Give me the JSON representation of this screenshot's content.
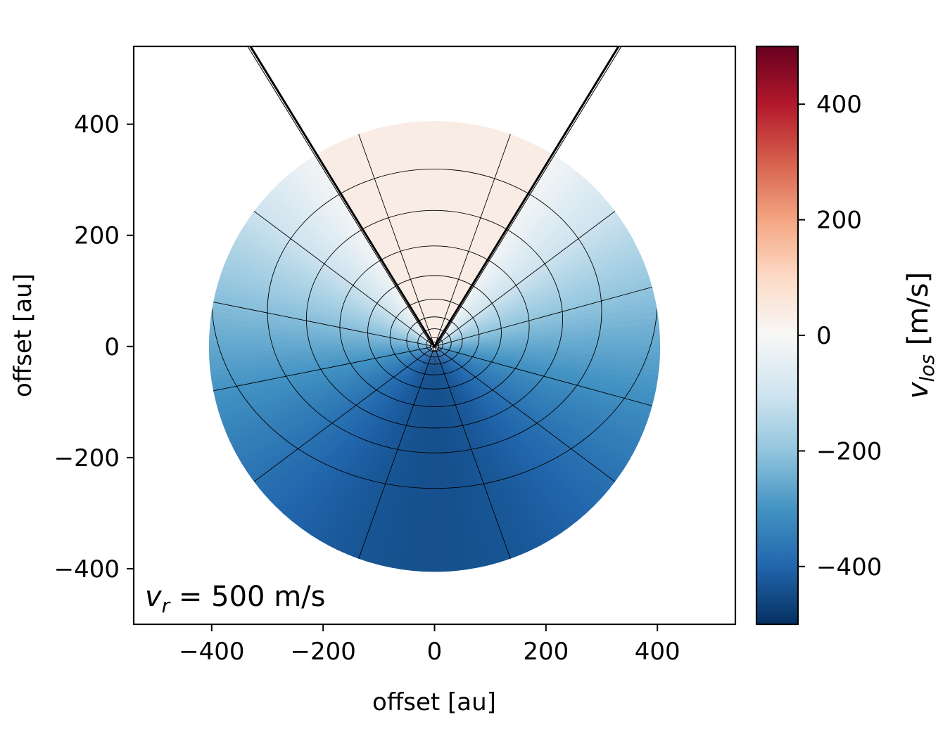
{
  "chart_data": {
    "type": "heatmap",
    "title": "",
    "xlabel": "offset [au]",
    "ylabel": "offset [au]",
    "xlim": [
      -540,
      540
    ],
    "ylim": [
      -500,
      540
    ],
    "x_ticks": [
      -400,
      -200,
      0,
      200,
      400
    ],
    "x_tick_labels": [
      "−400",
      "−200",
      "0",
      "200",
      "400"
    ],
    "y_ticks": [
      -400,
      -200,
      0,
      200,
      400
    ],
    "y_tick_labels": [
      "−400",
      "−200",
      "0",
      "200",
      "400"
    ],
    "annotation": {
      "symbol": "v",
      "subscript": "r",
      "text": " = 500 m/s"
    },
    "field": {
      "description_key": "v_los",
      "outer_radius": 405,
      "cone_half_angle_deg": 31.5,
      "cone_value": 40,
      "min_value": -440,
      "grid_radii": [
        15,
        30,
        50,
        80,
        120,
        170,
        230,
        300,
        400
      ],
      "grid_angles_deg": [
        -135,
        -105,
        -75,
        -45,
        -20,
        20,
        45,
        75,
        105,
        135,
        165,
        195
      ],
      "grid_y_compression": 0.85
    },
    "colorbar": {
      "label_symbol": "v",
      "label_subscript": "los",
      "label_unit": " [m/s]",
      "colormap": "RdBu_r",
      "range": [
        -500,
        500
      ],
      "ticks": [
        -400,
        -200,
        0,
        200,
        400
      ],
      "tick_labels": [
        "−400",
        "−200",
        "0",
        "200",
        "400"
      ],
      "colors": [
        "#053061",
        "#2166ac",
        "#4393c3",
        "#92c5de",
        "#d1e5f0",
        "#f7f7f7",
        "#fddbc7",
        "#f4a582",
        "#d6604d",
        "#b2182b",
        "#67001f"
      ]
    }
  }
}
